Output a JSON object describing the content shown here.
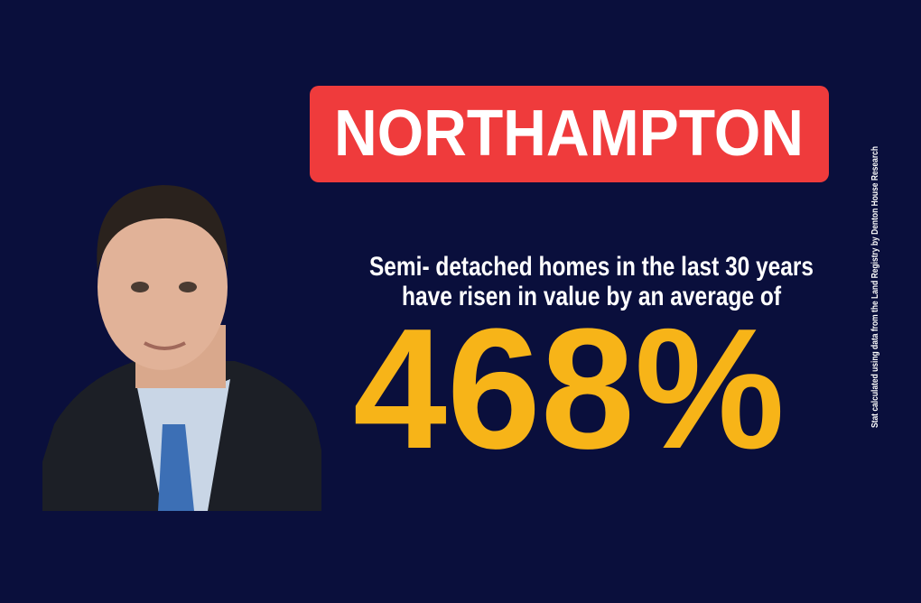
{
  "header": {
    "title": "NORTHAMPTON"
  },
  "body": {
    "lines": [
      "Semi- detached homes in the last 30 years",
      "have risen in value by an average of"
    ],
    "stat": "468%"
  },
  "footnote": "Stat calculated using data from the Land Registry by Denton House Research"
}
